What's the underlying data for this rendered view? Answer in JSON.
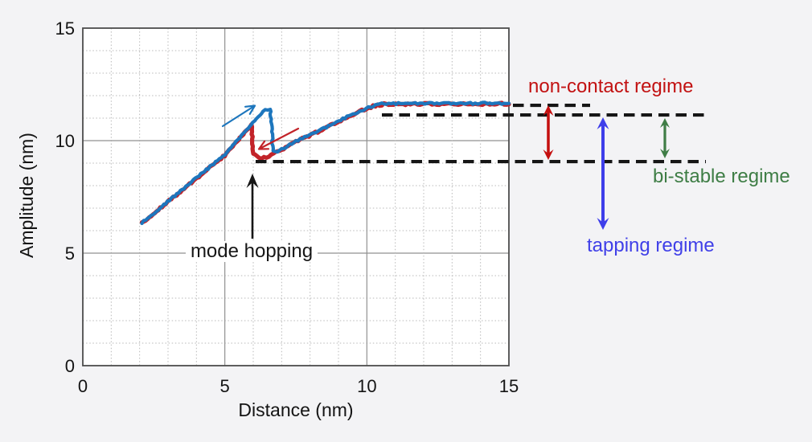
{
  "chart_data": {
    "type": "line",
    "xlabel": "Distance (nm)",
    "ylabel": "Amplitude (nm)",
    "xlim": [
      0,
      15
    ],
    "ylim": [
      0,
      15
    ],
    "xticks": [
      0,
      5,
      10,
      15
    ],
    "yticks": [
      0,
      5,
      10,
      15
    ],
    "minor_grid_step_nm": 1,
    "grid": true,
    "series": [
      {
        "name": "approach (blue)",
        "color": "#1d76bd",
        "points": [
          [
            2.08,
            6.35
          ],
          [
            3.5,
            7.82
          ],
          [
            5.0,
            9.38
          ],
          [
            5.7,
            10.38
          ],
          [
            6.1,
            10.97
          ],
          [
            6.42,
            11.38
          ],
          [
            6.6,
            11.41
          ],
          [
            6.66,
            10.4
          ],
          [
            6.69,
            9.55
          ],
          [
            6.78,
            9.47
          ],
          [
            7.5,
            9.97
          ],
          [
            8.5,
            10.55
          ],
          [
            9.3,
            11.05
          ],
          [
            9.9,
            11.4
          ],
          [
            10.3,
            11.58
          ],
          [
            10.6,
            11.64
          ],
          [
            15.0,
            11.66
          ]
        ]
      },
      {
        "name": "retract (red)",
        "color": "#c22329",
        "points": [
          [
            2.08,
            6.33
          ],
          [
            3.5,
            7.8
          ],
          [
            5.0,
            9.35
          ],
          [
            5.7,
            10.36
          ],
          [
            5.95,
            10.72
          ],
          [
            5.99,
            9.42
          ],
          [
            6.2,
            9.21
          ],
          [
            6.55,
            9.3
          ],
          [
            6.78,
            9.46
          ],
          [
            7.5,
            9.95
          ],
          [
            8.5,
            10.53
          ],
          [
            9.3,
            11.03
          ],
          [
            9.9,
            11.38
          ],
          [
            10.3,
            11.56
          ],
          [
            10.6,
            11.62
          ],
          [
            15.0,
            11.64
          ]
        ]
      }
    ],
    "dashed_levels_nm": [
      11.57,
      11.14,
      9.07
    ],
    "regime_spans_nm": {
      "non_contact": [
        9.07,
        11.57
      ],
      "tapping": [
        6.0,
        11.14
      ],
      "bi_stable": [
        9.07,
        11.14
      ]
    },
    "mode_hopping_point_nm": [
      5.97,
      9.2
    ]
  },
  "annotations": {
    "mode_hopping": {
      "label": "mode hopping",
      "color": "#161616"
    },
    "non_contact": {
      "label": "non-contact regime",
      "color": "#c21212"
    },
    "bi_stable": {
      "label": "bi-stable regime",
      "color": "#3e7d45"
    },
    "tapping": {
      "label": "tapping regime",
      "color": "#4040e8"
    }
  },
  "direction_arrows": [
    {
      "name": "approach-direction",
      "color": "#1d76bd",
      "direction": "up-right"
    },
    {
      "name": "retract-direction",
      "color": "#c22329",
      "direction": "down-left"
    }
  ],
  "style": {
    "background": "#f3f3f5",
    "plot_background": "#ffffff",
    "border_color": "#4d4d4d",
    "major_grid_color": "#909090",
    "minor_grid_color": "#b9b9b9",
    "dashed_line_color": "#161616",
    "arrow_red": "#c40f0f",
    "arrow_blue": "#3e3eea",
    "arrow_green": "#3f7d46"
  }
}
